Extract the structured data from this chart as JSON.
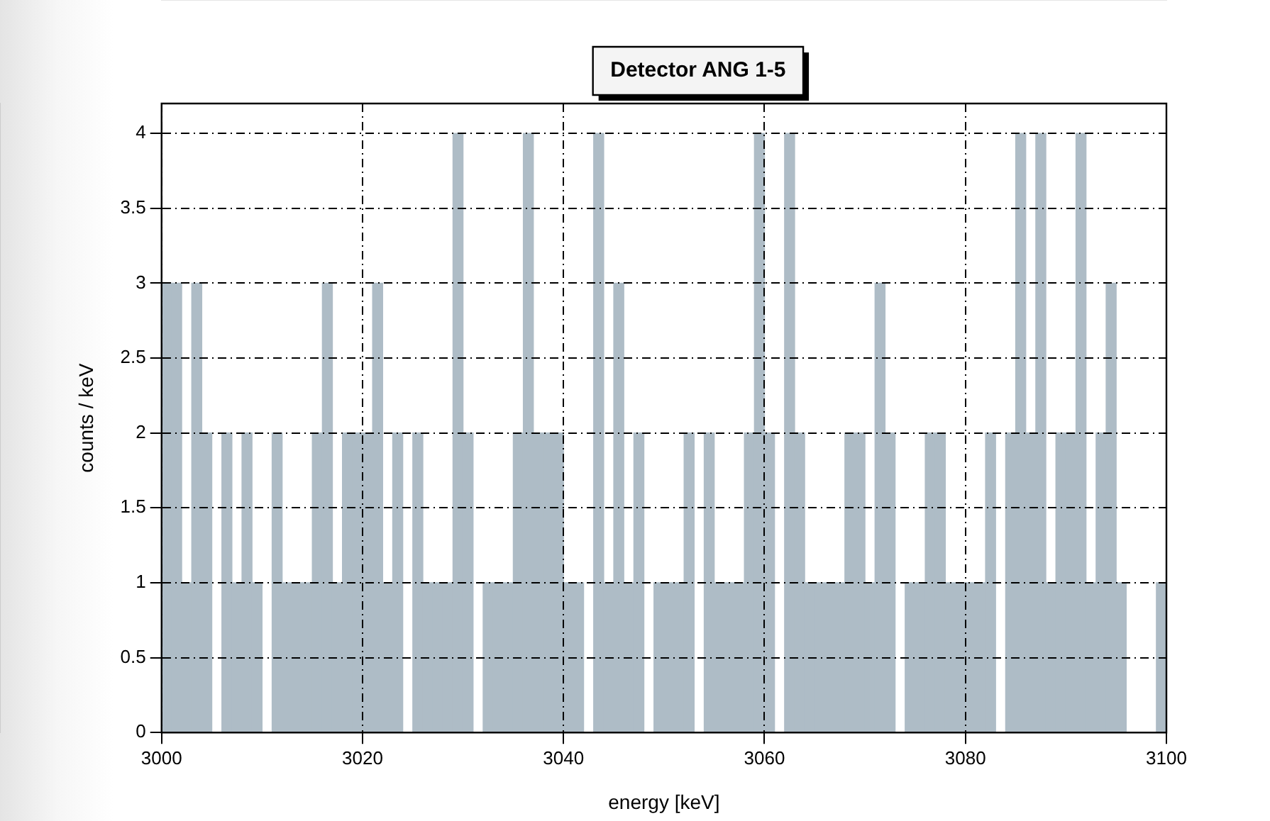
{
  "chart_data": {
    "type": "histogram",
    "title": "Detector ANG 1-5",
    "xlabel": "energy [keV]",
    "ylabel": "counts / keV",
    "bins": [
      3000,
      3001,
      3002,
      3003,
      3004,
      3005,
      3006,
      3007,
      3008,
      3009,
      3010,
      3011,
      3012,
      3013,
      3014,
      3015,
      3016,
      3017,
      3018,
      3019,
      3020,
      3021,
      3022,
      3023,
      3024,
      3025,
      3026,
      3027,
      3028,
      3029,
      3030,
      3031,
      3032,
      3033,
      3034,
      3035,
      3036,
      3037,
      3038,
      3039,
      3040,
      3041,
      3042,
      3043,
      3044,
      3045,
      3046,
      3047,
      3048,
      3049,
      3050,
      3051,
      3052,
      3053,
      3054,
      3055,
      3056,
      3057,
      3058,
      3059,
      3060,
      3061,
      3062,
      3063,
      3064,
      3065,
      3066,
      3067,
      3068,
      3069,
      3070,
      3071,
      3072,
      3073,
      3074,
      3075,
      3076,
      3077,
      3078,
      3079,
      3080,
      3081,
      3082,
      3083,
      3084,
      3085,
      3086,
      3087,
      3088,
      3089,
      3090,
      3091,
      3092,
      3093,
      3094,
      3095,
      3096,
      3097,
      3098,
      3099,
      3100
    ],
    "values": [
      3,
      3,
      1,
      3,
      2,
      0,
      2,
      1,
      2,
      1,
      0,
      2,
      1,
      1,
      1,
      2,
      3,
      1,
      2,
      2,
      2,
      3,
      1,
      2,
      0,
      2,
      1,
      1,
      1,
      4,
      2,
      0,
      1,
      1,
      1,
      2,
      4,
      2,
      2,
      2,
      1,
      1,
      0,
      4,
      1,
      3,
      1,
      2,
      0,
      1,
      1,
      1,
      2,
      0,
      2,
      1,
      1,
      1,
      2,
      4,
      2,
      0,
      4,
      2,
      1,
      1,
      1,
      1,
      2,
      2,
      1,
      3,
      2,
      0,
      1,
      1,
      2,
      2,
      1,
      1,
      1,
      1,
      2,
      0,
      2,
      4,
      2,
      4,
      1,
      2,
      2,
      4,
      1,
      2,
      3,
      1,
      0,
      0,
      0,
      1
    ],
    "color": "#aebcc6",
    "xlim": [
      3000,
      3100
    ],
    "xticks": [
      3000,
      3020,
      3040,
      3060,
      3080,
      3100
    ],
    "ylim": [
      0,
      4.2
    ],
    "yticks": [
      0,
      0.5,
      1,
      1.5,
      2,
      2.5,
      3,
      3.5,
      4
    ],
    "grid": true
  }
}
